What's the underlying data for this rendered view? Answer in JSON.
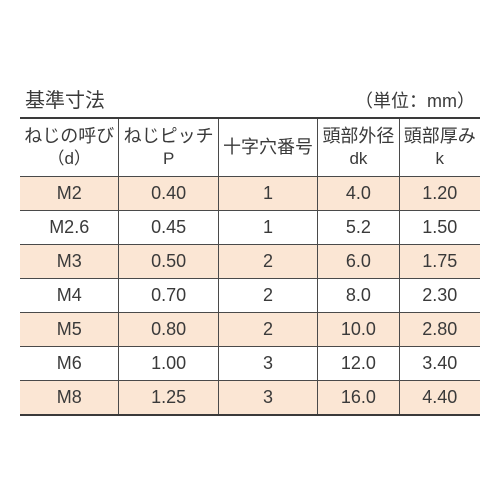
{
  "title": "基準寸法",
  "unit": "（単位：mm）",
  "table": {
    "type": "table",
    "colors": {
      "odd_row": "#fbe6d4",
      "even_row": "#ffffff",
      "border": "#4a4a4a",
      "text": "#3a3a3a"
    },
    "header": [
      {
        "main": "ねじの呼び",
        "sub": "（d）"
      },
      {
        "main": "ねじピッチ",
        "sub": "P"
      },
      {
        "main": "十字穴番号",
        "sub": ""
      },
      {
        "main": "頭部外径",
        "sub": "dk"
      },
      {
        "main": "頭部厚み",
        "sub": "k"
      }
    ],
    "rows": [
      [
        "M2",
        "0.40",
        "1",
        "4.0",
        "1.20"
      ],
      [
        "M2.6",
        "0.45",
        "1",
        "5.2",
        "1.50"
      ],
      [
        "M3",
        "0.50",
        "2",
        "6.0",
        "1.75"
      ],
      [
        "M4",
        "0.70",
        "2",
        "8.0",
        "2.30"
      ],
      [
        "M5",
        "0.80",
        "2",
        "10.0",
        "2.80"
      ],
      [
        "M6",
        "1.00",
        "3",
        "12.0",
        "3.40"
      ],
      [
        "M8",
        "1.25",
        "3",
        "16.0",
        "4.40"
      ]
    ]
  }
}
